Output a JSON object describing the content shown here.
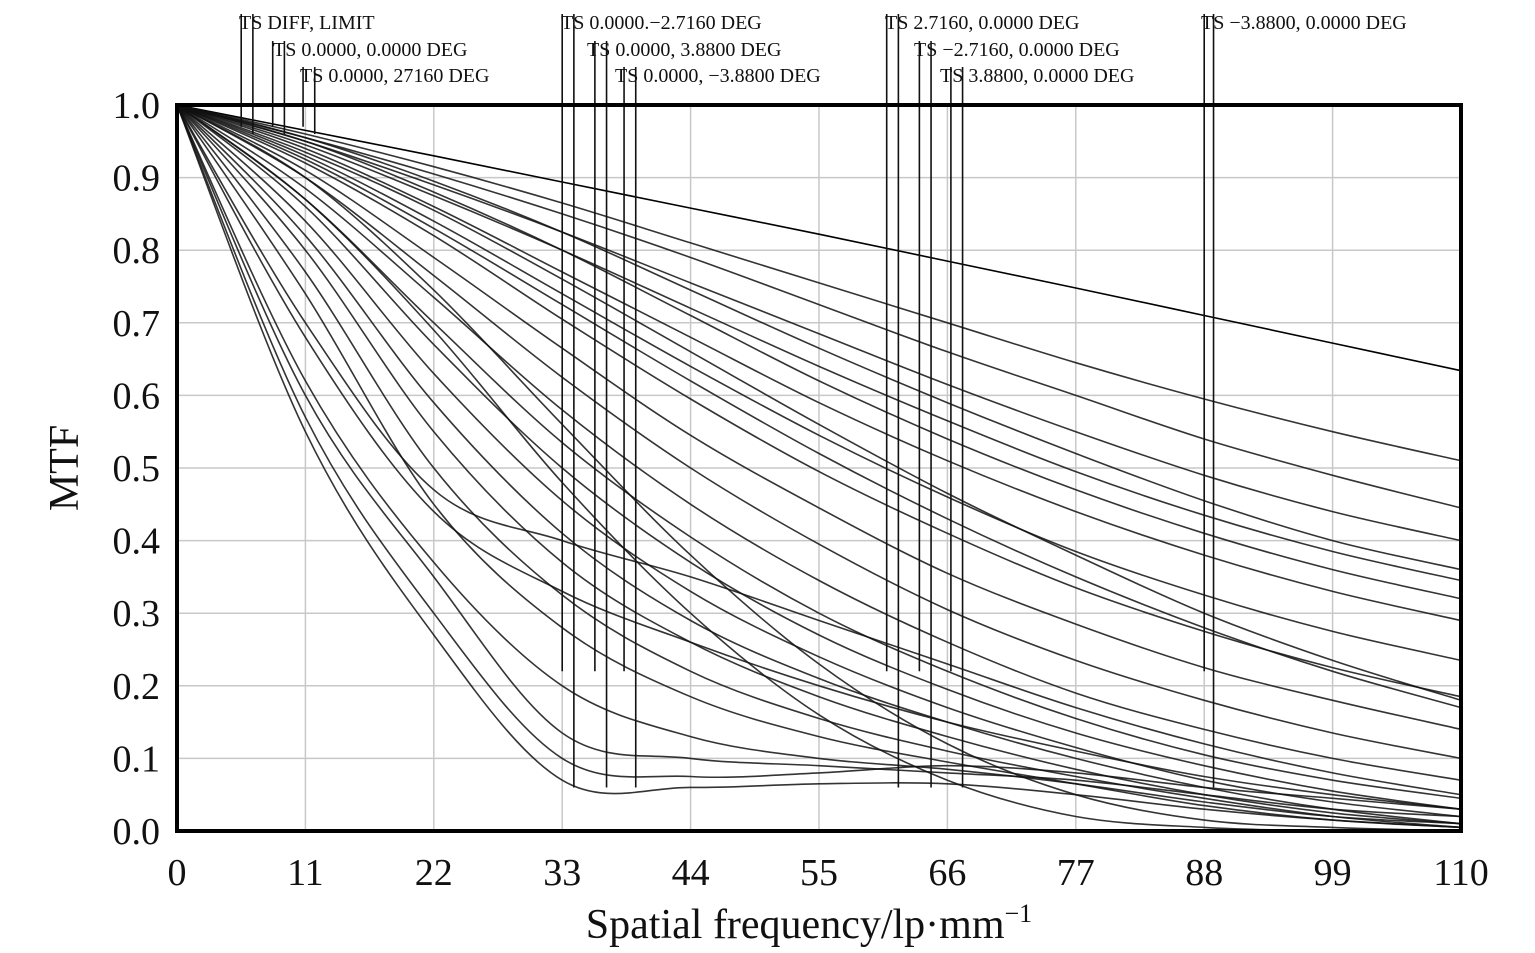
{
  "chart_data": {
    "type": "line",
    "title": "",
    "xlabel": "Spatial frequency/lp·mm",
    "xlabel_superscript": "−1",
    "ylabel": "MTF",
    "xlim": [
      0,
      110
    ],
    "ylim": [
      0,
      1
    ],
    "grid": true,
    "x_ticks": [
      0,
      11,
      22,
      33,
      44,
      55,
      66,
      77,
      88,
      99,
      110
    ],
    "y_ticks": [
      0.0,
      0.1,
      0.2,
      0.3,
      0.4,
      0.5,
      0.6,
      0.7,
      0.8,
      0.9,
      1.0
    ],
    "x_tick_labels": [
      "0",
      "11",
      "22",
      "33",
      "44",
      "55",
      "66",
      "77",
      "88",
      "99",
      "110"
    ],
    "y_tick_labels": [
      "0.0",
      "0.1",
      "0.2",
      "0.3",
      "0.4",
      "0.5",
      "0.6",
      "0.7",
      "0.8",
      "0.9",
      "1.0"
    ],
    "colors": {
      "curve": "#111111",
      "diff_limit": "#000000",
      "grid": "#c8c8c8",
      "frame": "#000000"
    },
    "legend": [
      {
        "label": "TS DIFF, LIMIT",
        "x_markers": [
          5.5,
          6.5
        ]
      },
      {
        "label": "TS 0.0000, 0.0000 DEG",
        "x_markers": [
          8.2,
          9.2
        ]
      },
      {
        "label": "TS 0.0000, 27160 DEG",
        "x_markers": [
          10.8,
          11.8
        ]
      },
      {
        "label": "TS 0.0000.−2.7160 DEG",
        "x_markers": [
          33.0,
          34.0
        ]
      },
      {
        "label": "TS 0.0000, 3.8800 DEG",
        "x_markers": [
          35.8,
          36.8
        ]
      },
      {
        "label": "TS 0.0000, −3.8800 DEG",
        "x_markers": [
          38.3,
          39.3
        ]
      },
      {
        "label": "TS 2.7160, 0.0000 DEG",
        "x_markers": [
          60.8,
          61.8
        ]
      },
      {
        "label": "TS −2.7160, 0.0000 DEG",
        "x_markers": [
          63.6,
          64.6
        ]
      },
      {
        "label": "TS 3.8800, 0.0000 DEG",
        "x_markers": [
          66.3,
          67.3
        ]
      },
      {
        "label": "TS −3.8800, 0.0000 DEG",
        "x_markers": [
          88.0,
          88.8
        ]
      }
    ],
    "series": [
      {
        "role": "diffraction-limit",
        "x": [
          0,
          11,
          22,
          33,
          44,
          55,
          66,
          77,
          88,
          99,
          110
        ],
        "values": [
          1.0,
          0.965,
          0.93,
          0.894,
          0.858,
          0.822,
          0.785,
          0.748,
          0.71,
          0.672,
          0.634
        ]
      },
      {
        "x": [
          0,
          11,
          22,
          33,
          44,
          55,
          66,
          77,
          88,
          99,
          110
        ],
        "values": [
          1.0,
          0.96,
          0.915,
          0.865,
          0.81,
          0.755,
          0.7,
          0.645,
          0.595,
          0.55,
          0.51
        ]
      },
      {
        "x": [
          0,
          11,
          22,
          33,
          44,
          55,
          66,
          77,
          88,
          99,
          110
        ],
        "values": [
          1.0,
          0.955,
          0.905,
          0.85,
          0.79,
          0.725,
          0.66,
          0.6,
          0.54,
          0.49,
          0.445
        ]
      },
      {
        "x": [
          0,
          11,
          22,
          33,
          44,
          55,
          66,
          77,
          88,
          99,
          110
        ],
        "values": [
          1.0,
          0.95,
          0.89,
          0.825,
          0.755,
          0.685,
          0.615,
          0.55,
          0.49,
          0.44,
          0.4
        ]
      },
      {
        "x": [
          0,
          11,
          22,
          33,
          44,
          55,
          66,
          77,
          88,
          99,
          110
        ],
        "values": [
          1.0,
          0.945,
          0.875,
          0.8,
          0.72,
          0.64,
          0.565,
          0.495,
          0.435,
          0.385,
          0.345
        ]
      },
      {
        "x": [
          0,
          11,
          22,
          33,
          44,
          55,
          66,
          77,
          88,
          99,
          110
        ],
        "values": [
          1.0,
          0.94,
          0.86,
          0.77,
          0.68,
          0.59,
          0.51,
          0.44,
          0.38,
          0.33,
          0.29
        ]
      },
      {
        "x": [
          0,
          11,
          22,
          33,
          44,
          55,
          66,
          77,
          88,
          99,
          110
        ],
        "values": [
          1.0,
          0.93,
          0.84,
          0.74,
          0.64,
          0.545,
          0.46,
          0.385,
          0.325,
          0.275,
          0.235
        ]
      },
      {
        "x": [
          0,
          11,
          22,
          33,
          44,
          55,
          66,
          77,
          88,
          99,
          110
        ],
        "values": [
          1.0,
          0.92,
          0.82,
          0.705,
          0.595,
          0.495,
          0.41,
          0.335,
          0.275,
          0.225,
          0.185
        ]
      },
      {
        "x": [
          0,
          11,
          22,
          33,
          44,
          55,
          66,
          77,
          88,
          99,
          110
        ],
        "values": [
          1.0,
          0.91,
          0.79,
          0.665,
          0.545,
          0.445,
          0.355,
          0.285,
          0.225,
          0.18,
          0.14
        ]
      },
      {
        "x": [
          0,
          11,
          22,
          33,
          44,
          55,
          66,
          77,
          88,
          99,
          110
        ],
        "values": [
          1.0,
          0.9,
          0.765,
          0.625,
          0.5,
          0.395,
          0.305,
          0.235,
          0.18,
          0.135,
          0.1
        ]
      },
      {
        "x": [
          0,
          11,
          22,
          33,
          44,
          55,
          66,
          77,
          88,
          99,
          110
        ],
        "values": [
          1.0,
          0.885,
          0.735,
          0.58,
          0.45,
          0.345,
          0.26,
          0.19,
          0.14,
          0.1,
          0.07
        ]
      },
      {
        "x": [
          0,
          11,
          22,
          33,
          44,
          55,
          66,
          77,
          88,
          99,
          110
        ],
        "values": [
          1.0,
          0.87,
          0.7,
          0.535,
          0.405,
          0.3,
          0.22,
          0.155,
          0.105,
          0.07,
          0.045
        ]
      },
      {
        "x": [
          0,
          11,
          22,
          33,
          44,
          55,
          66,
          77,
          88,
          99,
          110
        ],
        "values": [
          1.0,
          0.86,
          0.67,
          0.5,
          0.37,
          0.27,
          0.195,
          0.135,
          0.09,
          0.055,
          0.03
        ]
      },
      {
        "x": [
          0,
          11,
          22,
          33,
          44,
          55,
          66,
          77,
          88,
          99,
          110
        ],
        "values": [
          1.0,
          0.84,
          0.63,
          0.455,
          0.33,
          0.24,
          0.17,
          0.115,
          0.07,
          0.04,
          0.02
        ]
      },
      {
        "x": [
          0,
          11,
          22,
          33,
          44,
          55,
          66,
          77,
          88,
          99,
          110
        ],
        "values": [
          1.0,
          0.82,
          0.59,
          0.41,
          0.29,
          0.21,
          0.15,
          0.1,
          0.06,
          0.03,
          0.01
        ]
      },
      {
        "x": [
          0,
          11,
          22,
          33,
          44,
          55,
          66,
          77,
          88,
          99,
          110
        ],
        "values": [
          1.0,
          0.8,
          0.55,
          0.37,
          0.26,
          0.185,
          0.13,
          0.085,
          0.05,
          0.025,
          0.01
        ]
      },
      {
        "x": [
          0,
          11,
          22,
          33,
          44,
          55,
          66,
          77,
          88,
          99,
          110
        ],
        "values": [
          1.0,
          0.77,
          0.5,
          0.325,
          0.22,
          0.155,
          0.11,
          0.075,
          0.045,
          0.02,
          0.005
        ]
      },
      {
        "x": [
          0,
          11,
          22,
          33,
          44,
          55,
          66,
          77,
          88,
          99,
          110
        ],
        "values": [
          1.0,
          0.74,
          0.45,
          0.28,
          0.185,
          0.13,
          0.095,
          0.065,
          0.035,
          0.015,
          0.005
        ]
      },
      {
        "x": [
          0,
          11,
          22,
          33,
          44,
          55,
          66,
          77,
          88,
          99,
          110
        ],
        "values": [
          1.0,
          0.7,
          0.47,
          0.4,
          0.35,
          0.29,
          0.23,
          0.17,
          0.12,
          0.08,
          0.05
        ]
      },
      {
        "x": [
          0,
          11,
          22,
          33,
          44,
          55,
          66,
          77,
          88,
          99,
          110
        ],
        "values": [
          1.0,
          0.68,
          0.44,
          0.33,
          0.26,
          0.2,
          0.15,
          0.11,
          0.075,
          0.05,
          0.03
        ]
      },
      {
        "x": [
          0,
          11,
          22,
          33,
          44,
          55,
          66,
          77,
          88,
          99,
          110
        ],
        "values": [
          1.0,
          0.62,
          0.37,
          0.2,
          0.13,
          0.1,
          0.085,
          0.065,
          0.04,
          0.02,
          0.01
        ]
      },
      {
        "x": [
          0,
          11,
          22,
          33,
          44,
          55,
          66,
          77,
          88,
          99,
          110
        ],
        "values": [
          1.0,
          0.6,
          0.35,
          0.135,
          0.1,
          0.09,
          0.08,
          0.07,
          0.05,
          0.03,
          0.02
        ]
      },
      {
        "x": [
          0,
          11,
          22,
          33,
          44,
          55,
          66,
          77,
          88,
          99,
          110
        ],
        "values": [
          1.0,
          0.57,
          0.3,
          0.1,
          0.075,
          0.08,
          0.09,
          0.08,
          0.06,
          0.045,
          0.03
        ]
      },
      {
        "x": [
          0,
          11,
          22,
          33,
          44,
          55,
          66,
          77,
          88,
          99,
          110
        ],
        "values": [
          1.0,
          0.55,
          0.27,
          0.07,
          0.06,
          0.065,
          0.065,
          0.05,
          0.03,
          0.015,
          0.005
        ]
      },
      {
        "x": [
          0,
          11,
          22,
          33,
          44,
          55,
          66,
          77,
          88,
          99,
          110
        ],
        "values": [
          1.0,
          0.9,
          0.745,
          0.56,
          0.38,
          0.23,
          0.12,
          0.05,
          0.015,
          0.005,
          0.0
        ]
      },
      {
        "x": [
          0,
          11,
          22,
          33,
          44,
          55,
          66,
          77,
          88,
          99,
          110
        ],
        "values": [
          1.0,
          0.87,
          0.69,
          0.48,
          0.3,
          0.16,
          0.07,
          0.02,
          0.005,
          0.0,
          0.0
        ]
      },
      {
        "x": [
          0,
          11,
          22,
          33,
          44,
          55,
          66,
          77,
          88,
          99,
          110
        ],
        "values": [
          1.0,
          0.935,
          0.855,
          0.76,
          0.66,
          0.56,
          0.465,
          0.38,
          0.3,
          0.235,
          0.18
        ]
      },
      {
        "x": [
          0,
          11,
          22,
          33,
          44,
          55,
          66,
          77,
          88,
          99,
          110
        ],
        "values": [
          1.0,
          0.925,
          0.83,
          0.725,
          0.62,
          0.52,
          0.43,
          0.35,
          0.28,
          0.22,
          0.17
        ]
      },
      {
        "x": [
          0,
          11,
          22,
          33,
          44,
          55,
          66,
          77,
          88,
          99,
          110
        ],
        "values": [
          1.0,
          0.95,
          0.88,
          0.8,
          0.71,
          0.62,
          0.54,
          0.47,
          0.41,
          0.36,
          0.32
        ]
      },
      {
        "x": [
          0,
          11,
          22,
          33,
          44,
          55,
          66,
          77,
          88,
          99,
          110
        ],
        "values": [
          1.0,
          0.955,
          0.895,
          0.825,
          0.745,
          0.665,
          0.59,
          0.52,
          0.455,
          0.4,
          0.36
        ]
      }
    ]
  }
}
